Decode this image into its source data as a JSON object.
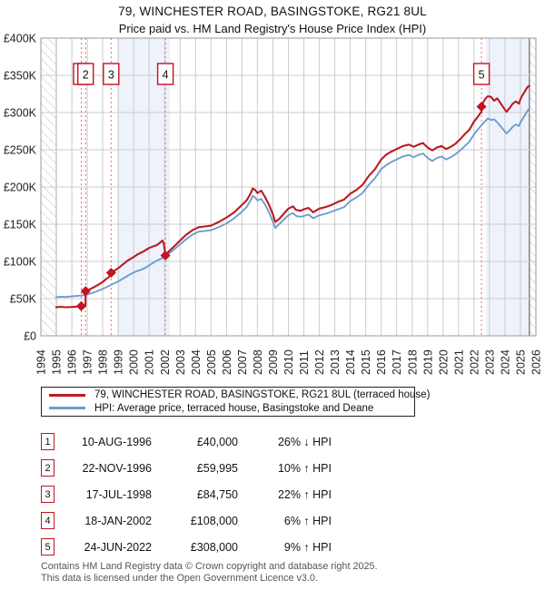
{
  "title": {
    "line1": "79, WINCHESTER ROAD, BASINGSTOKE, RG21 8UL",
    "line2": "Price paid vs. HM Land Registry's House Price Index (HPI)"
  },
  "chart_data": {
    "type": "line",
    "title": "Price paid vs. HM Land Registry's House Price Index (HPI)",
    "y_unit": "GBP thousands",
    "ylim_k": [
      0,
      400
    ],
    "xlim": [
      1994,
      2026
    ],
    "grid": true,
    "y_ticks": [
      {
        "v": 0,
        "label": "£0"
      },
      {
        "v": 50,
        "label": "£50K"
      },
      {
        "v": 100,
        "label": "£100K"
      },
      {
        "v": 150,
        "label": "£150K"
      },
      {
        "v": 200,
        "label": "£200K"
      },
      {
        "v": 250,
        "label": "£250K"
      },
      {
        "v": 300,
        "label": "£300K"
      },
      {
        "v": 350,
        "label": "£350K"
      },
      {
        "v": 400,
        "label": "£400K"
      }
    ],
    "x_years": [
      1994,
      1995,
      1996,
      1997,
      1998,
      1999,
      2000,
      2001,
      2002,
      2003,
      2004,
      2005,
      2006,
      2007,
      2008,
      2009,
      2010,
      2011,
      2012,
      2013,
      2014,
      2015,
      2016,
      2017,
      2018,
      2019,
      2020,
      2021,
      2022,
      2023,
      2024,
      2025,
      2026
    ],
    "series": [
      {
        "id": "hpi",
        "name": "HPI: Average price, terraced house, Basingstoke and Deane",
        "color": "#6f9cce",
        "width": 1.9,
        "points": [
          [
            1995.0,
            52
          ],
          [
            1995.3,
            52.5
          ],
          [
            1995.6,
            52.2
          ],
          [
            1996.0,
            53
          ],
          [
            1996.3,
            53.5
          ],
          [
            1996.61,
            54
          ],
          [
            1996.9,
            55
          ],
          [
            1997.2,
            57
          ],
          [
            1997.5,
            59
          ],
          [
            1998.0,
            63
          ],
          [
            1998.54,
            68.5
          ],
          [
            1999.0,
            73
          ],
          [
            1999.4,
            78
          ],
          [
            1999.8,
            83
          ],
          [
            2000.2,
            87
          ],
          [
            2000.5,
            89
          ],
          [
            2000.8,
            92
          ],
          [
            2001.1,
            96
          ],
          [
            2001.4,
            100
          ],
          [
            2001.7,
            103
          ],
          [
            2002.05,
            106
          ],
          [
            2002.3,
            111
          ],
          [
            2002.6,
            116
          ],
          [
            2003.0,
            123
          ],
          [
            2003.4,
            130
          ],
          [
            2003.8,
            136
          ],
          [
            2004.2,
            140
          ],
          [
            2004.6,
            141
          ],
          [
            2005.0,
            142
          ],
          [
            2005.5,
            146
          ],
          [
            2006.0,
            151
          ],
          [
            2006.5,
            158
          ],
          [
            2007.0,
            167
          ],
          [
            2007.3,
            173
          ],
          [
            2007.55,
            182
          ],
          [
            2007.7,
            188
          ],
          [
            2007.85,
            186
          ],
          [
            2008.0,
            182
          ],
          [
            2008.25,
            184
          ],
          [
            2008.5,
            176
          ],
          [
            2008.75,
            166
          ],
          [
            2009.0,
            153
          ],
          [
            2009.15,
            145
          ],
          [
            2009.4,
            150
          ],
          [
            2009.7,
            156
          ],
          [
            2010.0,
            162
          ],
          [
            2010.3,
            165
          ],
          [
            2010.5,
            161
          ],
          [
            2010.8,
            160
          ],
          [
            2011.0,
            161
          ],
          [
            2011.3,
            163
          ],
          [
            2011.6,
            158
          ],
          [
            2012.0,
            162
          ],
          [
            2012.4,
            164
          ],
          [
            2012.8,
            167
          ],
          [
            2013.2,
            170
          ],
          [
            2013.6,
            173
          ],
          [
            2014.0,
            181
          ],
          [
            2014.4,
            186
          ],
          [
            2014.8,
            192
          ],
          [
            2015.2,
            203
          ],
          [
            2015.6,
            212
          ],
          [
            2016.0,
            224
          ],
          [
            2016.3,
            229
          ],
          [
            2016.6,
            233
          ],
          [
            2017.0,
            237
          ],
          [
            2017.4,
            241
          ],
          [
            2017.8,
            243
          ],
          [
            2018.1,
            240
          ],
          [
            2018.4,
            243
          ],
          [
            2018.7,
            245
          ],
          [
            2019.0,
            239
          ],
          [
            2019.3,
            235
          ],
          [
            2019.6,
            239
          ],
          [
            2019.9,
            241
          ],
          [
            2020.2,
            237
          ],
          [
            2020.5,
            240
          ],
          [
            2020.8,
            244
          ],
          [
            2021.1,
            249
          ],
          [
            2021.4,
            255
          ],
          [
            2021.7,
            261
          ],
          [
            2022.0,
            271
          ],
          [
            2022.2,
            276
          ],
          [
            2022.48,
            283
          ],
          [
            2022.7,
            288
          ],
          [
            2022.9,
            292
          ],
          [
            2023.1,
            290
          ],
          [
            2023.3,
            291
          ],
          [
            2023.5,
            287
          ],
          [
            2023.7,
            282
          ],
          [
            2023.9,
            277
          ],
          [
            2024.1,
            272
          ],
          [
            2024.3,
            276
          ],
          [
            2024.5,
            281
          ],
          [
            2024.7,
            284
          ],
          [
            2024.9,
            282
          ],
          [
            2025.0,
            287
          ],
          [
            2025.15,
            292
          ],
          [
            2025.3,
            297
          ],
          [
            2025.45,
            302
          ],
          [
            2025.58,
            306
          ]
        ]
      },
      {
        "id": "price_paid",
        "name": "79, WINCHESTER ROAD, BASINGSTOKE, RG21 8UL (terraced house)",
        "color": "#ba1a22",
        "width": 2.1,
        "points": [
          [
            1995.0,
            38.5
          ],
          [
            1995.3,
            38.9
          ],
          [
            1995.6,
            38.4
          ],
          [
            1996.0,
            38.8
          ],
          [
            1996.3,
            39.3
          ],
          [
            1996.61,
            40
          ],
          [
            1996.88,
            40.3
          ],
          [
            1996.89,
            59.995
          ],
          [
            1997.1,
            62
          ],
          [
            1997.4,
            65
          ],
          [
            1997.7,
            68.5
          ],
          [
            1998.0,
            72.5
          ],
          [
            1998.2,
            76
          ],
          [
            1998.4,
            79
          ],
          [
            1998.54,
            84.75
          ],
          [
            1998.8,
            88
          ],
          [
            1999.0,
            91
          ],
          [
            1999.3,
            96
          ],
          [
            1999.6,
            101
          ],
          [
            2000.0,
            106
          ],
          [
            2000.3,
            110
          ],
          [
            2000.6,
            113
          ],
          [
            2001.0,
            118
          ],
          [
            2001.3,
            120.5
          ],
          [
            2001.5,
            122
          ],
          [
            2001.7,
            125
          ],
          [
            2001.85,
            128
          ],
          [
            2001.95,
            124
          ],
          [
            2002.02,
            112
          ],
          [
            2002.05,
            108
          ],
          [
            2002.3,
            114
          ],
          [
            2002.6,
            120
          ],
          [
            2003.0,
            128
          ],
          [
            2003.4,
            136
          ],
          [
            2003.8,
            142
          ],
          [
            2004.2,
            146
          ],
          [
            2004.6,
            147
          ],
          [
            2005.0,
            148
          ],
          [
            2005.5,
            153
          ],
          [
            2006.0,
            159
          ],
          [
            2006.5,
            166
          ],
          [
            2007.0,
            176
          ],
          [
            2007.3,
            182
          ],
          [
            2007.55,
            191
          ],
          [
            2007.7,
            198
          ],
          [
            2007.85,
            196
          ],
          [
            2008.0,
            192
          ],
          [
            2008.25,
            195
          ],
          [
            2008.5,
            186
          ],
          [
            2008.75,
            176
          ],
          [
            2009.0,
            163
          ],
          [
            2009.15,
            153
          ],
          [
            2009.4,
            157
          ],
          [
            2009.7,
            164
          ],
          [
            2010.0,
            171
          ],
          [
            2010.3,
            174
          ],
          [
            2010.5,
            169
          ],
          [
            2010.8,
            168
          ],
          [
            2011.0,
            170
          ],
          [
            2011.3,
            172
          ],
          [
            2011.6,
            166
          ],
          [
            2012.0,
            171
          ],
          [
            2012.4,
            173
          ],
          [
            2012.8,
            176
          ],
          [
            2013.2,
            180
          ],
          [
            2013.6,
            183
          ],
          [
            2014.0,
            191
          ],
          [
            2014.4,
            196
          ],
          [
            2014.8,
            203
          ],
          [
            2015.2,
            215
          ],
          [
            2015.6,
            224
          ],
          [
            2016.0,
            237
          ],
          [
            2016.3,
            243
          ],
          [
            2016.6,
            247
          ],
          [
            2017.0,
            251
          ],
          [
            2017.4,
            255
          ],
          [
            2017.8,
            257
          ],
          [
            2018.1,
            254
          ],
          [
            2018.4,
            257
          ],
          [
            2018.7,
            259
          ],
          [
            2019.0,
            253
          ],
          [
            2019.3,
            249
          ],
          [
            2019.6,
            253
          ],
          [
            2019.9,
            255
          ],
          [
            2020.2,
            251
          ],
          [
            2020.5,
            254
          ],
          [
            2020.8,
            258
          ],
          [
            2021.1,
            264
          ],
          [
            2021.4,
            271
          ],
          [
            2021.7,
            277
          ],
          [
            2022.0,
            288
          ],
          [
            2022.2,
            293
          ],
          [
            2022.4,
            299
          ],
          [
            2022.47,
            300
          ],
          [
            2022.48,
            308
          ],
          [
            2022.6,
            314
          ],
          [
            2022.75,
            319
          ],
          [
            2022.9,
            322
          ],
          [
            2023.1,
            321
          ],
          [
            2023.3,
            316
          ],
          [
            2023.5,
            319
          ],
          [
            2023.7,
            313
          ],
          [
            2023.9,
            307
          ],
          [
            2024.1,
            301
          ],
          [
            2024.3,
            306
          ],
          [
            2024.5,
            312
          ],
          [
            2024.7,
            315
          ],
          [
            2024.9,
            312
          ],
          [
            2025.0,
            318
          ],
          [
            2025.15,
            324
          ],
          [
            2025.3,
            329
          ],
          [
            2025.45,
            334
          ],
          [
            2025.58,
            336
          ]
        ]
      }
    ],
    "sale_markers": [
      {
        "n": "1",
        "year": 1996.61,
        "value_k": 40
      },
      {
        "n": "2",
        "year": 1996.89,
        "value_k": 59.995
      },
      {
        "n": "3",
        "year": 1998.54,
        "value_k": 84.75
      },
      {
        "n": "4",
        "year": 2002.05,
        "value_k": 108
      },
      {
        "n": "5",
        "year": 2022.48,
        "value_k": 308
      }
    ],
    "shaded_periods": [
      [
        1998.94,
        2002.35
      ],
      [
        2022.76,
        2025.58
      ]
    ],
    "no_data_periods": [
      [
        1994.0,
        1995.0
      ],
      [
        2025.58,
        2026.0
      ]
    ],
    "colors": {
      "dashed_marker_line": "#e76a6a",
      "shaded_band": "#edf2fb",
      "grid": "#cccccc",
      "plot_border": "#999999",
      "data_edge_line": "#666666",
      "hatch": "#c3c7cf",
      "marker_fill": "#c31220"
    }
  },
  "transactions": [
    {
      "num": "1",
      "date": "10-AUG-1996",
      "price": "£40,000",
      "vs_hpi": "26% ↓ HPI"
    },
    {
      "num": "2",
      "date": "22-NOV-1996",
      "price": "£59,995",
      "vs_hpi": "10% ↑ HPI"
    },
    {
      "num": "3",
      "date": "17-JUL-1998",
      "price": "£84,750",
      "vs_hpi": "22% ↑ HPI"
    },
    {
      "num": "4",
      "date": "18-JAN-2002",
      "price": "£108,000",
      "vs_hpi": "6% ↑ HPI"
    },
    {
      "num": "5",
      "date": "24-JUN-2022",
      "price": "£308,000",
      "vs_hpi": "9% ↑ HPI"
    }
  ],
  "footer": {
    "line1": "Contains HM Land Registry data © Crown copyright and database right 2025.",
    "line2": "This data is licensed under the Open Government Licence v3.0."
  }
}
